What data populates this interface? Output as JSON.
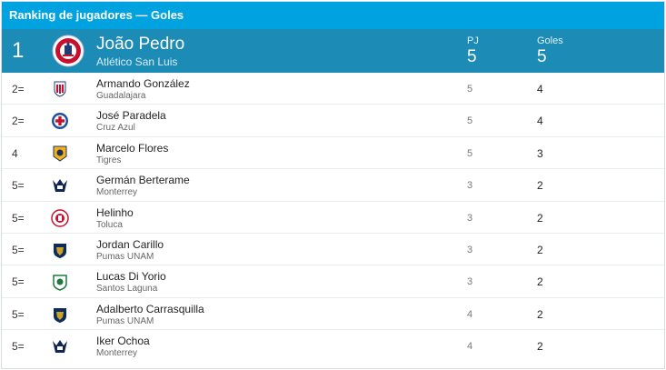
{
  "widget": {
    "title": "Ranking de jugadores — Goles"
  },
  "leader": {
    "rank": "1",
    "name": "João Pedro",
    "team": "Atlético San Luis",
    "pj_label": "PJ",
    "pj": "5",
    "goals_label": "Goles",
    "goals": "5",
    "crest_icon": "atletico-san-luis-crest-icon"
  },
  "rows": [
    {
      "rank": "2=",
      "name": "Armando González",
      "team": "Guadalajara",
      "pj": "5",
      "goals": "4",
      "crest": "guadalajara"
    },
    {
      "rank": "2=",
      "name": "José Paradela",
      "team": "Cruz Azul",
      "pj": "5",
      "goals": "4",
      "crest": "cruzazul"
    },
    {
      "rank": "4",
      "name": "Marcelo Flores",
      "team": "Tigres",
      "pj": "5",
      "goals": "3",
      "crest": "tigres"
    },
    {
      "rank": "5=",
      "name": "Germán Berterame",
      "team": "Monterrey",
      "pj": "3",
      "goals": "2",
      "crest": "monterrey"
    },
    {
      "rank": "5=",
      "name": "Helinho",
      "team": "Toluca",
      "pj": "3",
      "goals": "2",
      "crest": "toluca"
    },
    {
      "rank": "5=",
      "name": "Jordan Carillo",
      "team": "Pumas UNAM",
      "pj": "3",
      "goals": "2",
      "crest": "pumas"
    },
    {
      "rank": "5=",
      "name": "Lucas Di Yorio",
      "team": "Santos Laguna",
      "pj": "3",
      "goals": "2",
      "crest": "santos"
    },
    {
      "rank": "5=",
      "name": "Adalberto Carrasquilla",
      "team": "Pumas UNAM",
      "pj": "4",
      "goals": "2",
      "crest": "pumas"
    },
    {
      "rank": "5=",
      "name": "Iker Ochoa",
      "team": "Monterrey",
      "pj": "4",
      "goals": "2",
      "crest": "monterrey"
    }
  ],
  "colors": {
    "topbar": "#00a3e0",
    "leader": "#1c8bb5"
  }
}
